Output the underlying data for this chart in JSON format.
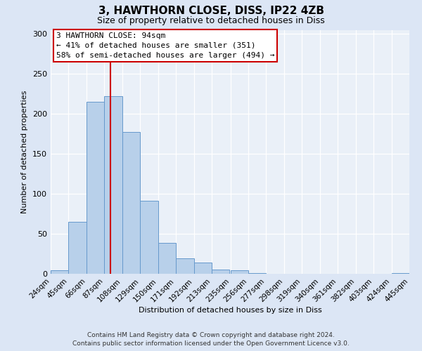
{
  "title": "3, HAWTHORN CLOSE, DISS, IP22 4ZB",
  "subtitle": "Size of property relative to detached houses in Diss",
  "xlabel": "Distribution of detached houses by size in Diss",
  "ylabel": "Number of detached properties",
  "bin_edges": [
    24,
    45,
    66,
    87,
    108,
    129,
    150,
    171,
    192,
    213,
    235,
    256,
    277,
    298,
    319,
    340,
    361,
    382,
    403,
    424,
    445
  ],
  "bar_heights": [
    4,
    65,
    215,
    222,
    177,
    91,
    39,
    19,
    14,
    5,
    4,
    1,
    0,
    0,
    0,
    0,
    0,
    0,
    0,
    1
  ],
  "bar_color": "#b8d0ea",
  "bar_edge_color": "#6699cc",
  "vline_x": 94,
  "vline_color": "#cc0000",
  "annotation_line1": "3 HAWTHORN CLOSE: 94sqm",
  "annotation_line2": "← 41% of detached houses are smaller (351)",
  "annotation_line3": "58% of semi-detached houses are larger (494) →",
  "ylim": [
    0,
    305
  ],
  "yticks": [
    0,
    50,
    100,
    150,
    200,
    250,
    300
  ],
  "tick_labels": [
    "24sqm",
    "45sqm",
    "66sqm",
    "87sqm",
    "108sqm",
    "129sqm",
    "150sqm",
    "171sqm",
    "192sqm",
    "213sqm",
    "235sqm",
    "256sqm",
    "277sqm",
    "298sqm",
    "319sqm",
    "340sqm",
    "361sqm",
    "382sqm",
    "403sqm",
    "424sqm",
    "445sqm"
  ],
  "footer_line1": "Contains HM Land Registry data © Crown copyright and database right 2024.",
  "footer_line2": "Contains public sector information licensed under the Open Government Licence v3.0.",
  "background_color": "#dce6f5",
  "plot_bg_color": "#eaf0f8",
  "grid_color": "#ffffff",
  "title_fontsize": 11,
  "subtitle_fontsize": 9,
  "axis_label_fontsize": 8,
  "tick_fontsize": 7.5,
  "annotation_fontsize": 8,
  "footer_fontsize": 6.5
}
